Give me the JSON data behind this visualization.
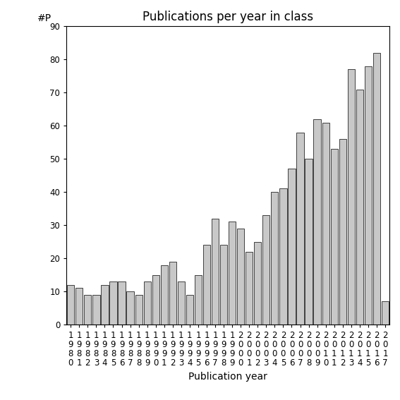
{
  "title": "Publications per year in class",
  "xlabel": "Publication year",
  "ylabel": "#P",
  "years": [
    "1980",
    "1981",
    "1982",
    "1983",
    "1984",
    "1985",
    "1986",
    "1987",
    "1988",
    "1989",
    "1990",
    "1991",
    "1992",
    "1993",
    "1994",
    "1995",
    "1996",
    "1997",
    "1998",
    "1999",
    "2000",
    "2001",
    "2002",
    "2003",
    "2004",
    "2005",
    "2006",
    "2007",
    "2008",
    "2009",
    "2010",
    "2011",
    "2012",
    "2013",
    "2014",
    "2015",
    "2016",
    "2017"
  ],
  "values": [
    12,
    11,
    9,
    9,
    12,
    13,
    13,
    10,
    9,
    13,
    15,
    18,
    19,
    13,
    9,
    15,
    24,
    32,
    24,
    31,
    29,
    22,
    25,
    33,
    40,
    41,
    47,
    58,
    50,
    62,
    61,
    53,
    56,
    77,
    71,
    78,
    82,
    7
  ],
  "bar_color": "#c8c8c8",
  "bar_edge_color": "#000000",
  "ylim": [
    0,
    90
  ],
  "yticks": [
    0,
    10,
    20,
    30,
    40,
    50,
    60,
    70,
    80,
    90
  ],
  "bg_color": "#ffffff",
  "title_fontsize": 12,
  "label_fontsize": 10,
  "tick_fontsize": 8.5
}
